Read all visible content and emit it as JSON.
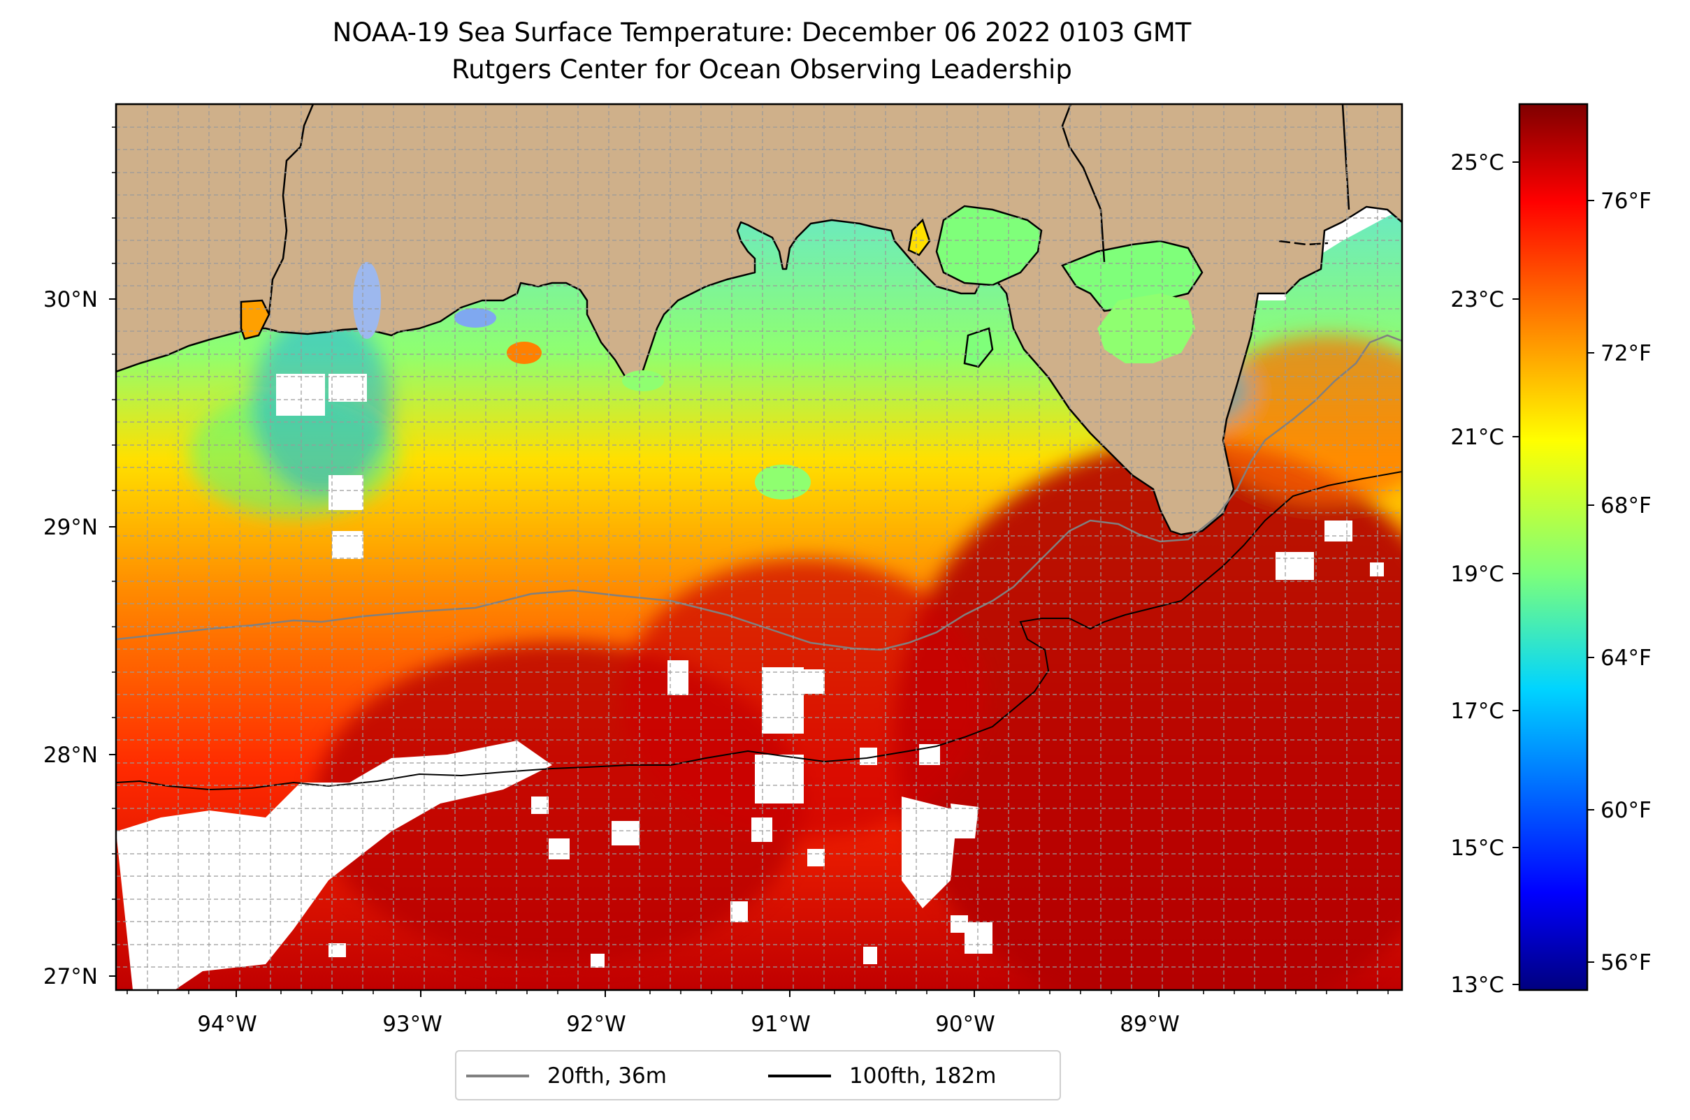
{
  "title": {
    "line1": "NOAA-19 Sea Surface Temperature: December 06 2022 0103 GMT",
    "line2": "Rutgers Center for Ocean Observing Leadership"
  },
  "map": {
    "lon_labels": [
      "94°W",
      "93°W",
      "92°W",
      "91°W",
      "90°W",
      "89°W"
    ],
    "lat_labels": [
      "30°N",
      "29°N",
      "28°N",
      "27°N"
    ],
    "land_color": "#cfb08a",
    "no_data_color": "#ffffff",
    "grid": "dashed"
  },
  "colorbar": {
    "celsius_labels": [
      "25°C",
      "23°C",
      "21°C",
      "19°C",
      "17°C",
      "15°C",
      "13°C"
    ],
    "fahrenheit_labels": [
      "76°F",
      "72°F",
      "68°F",
      "64°F",
      "60°F",
      "56°F"
    ],
    "colormap": "jet",
    "colors": [
      "#00007f",
      "#0000ff",
      "#007fff",
      "#00ffff",
      "#7fff7f",
      "#ffff00",
      "#ff7f00",
      "#ff0000",
      "#7f0000"
    ]
  },
  "legend": {
    "items": [
      {
        "label": "20fth, 36m",
        "color": "#808080"
      },
      {
        "label": "100fth, 182m",
        "color": "#000000"
      }
    ]
  }
}
